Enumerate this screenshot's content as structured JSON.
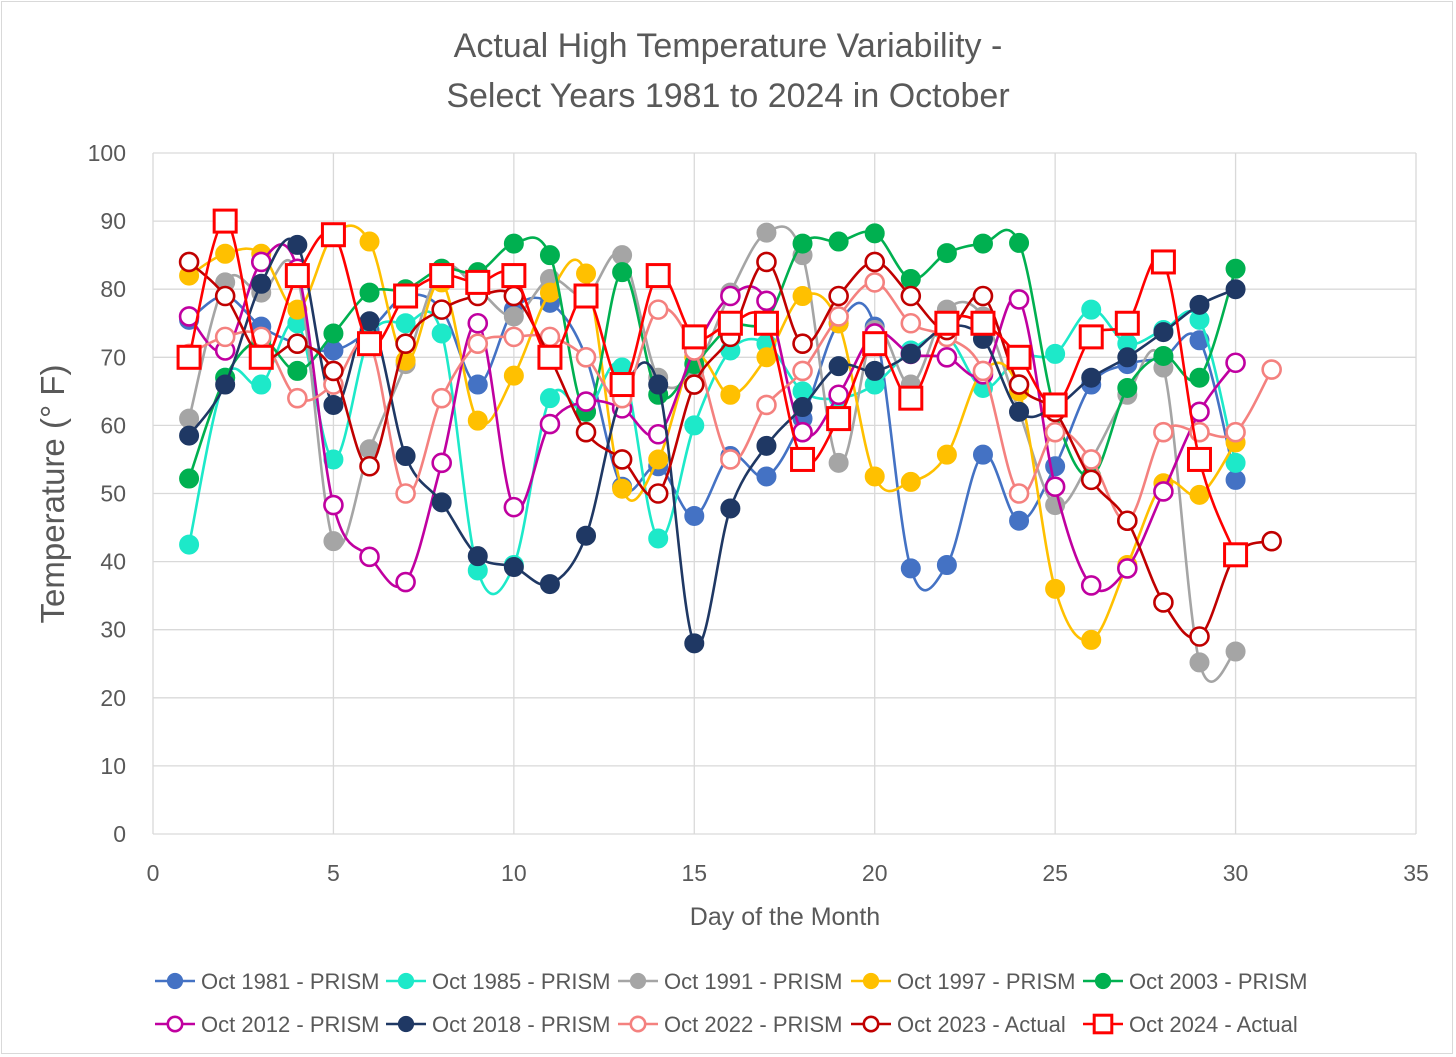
{
  "chart_data": {
    "type": "scatter",
    "title": [
      "Actual High Temperature Variability -",
      "Select Years 1981 to 2024 in October"
    ],
    "xlabel": "Day of the Month",
    "ylabel": "Temperature (° F)",
    "xlim": [
      0,
      35
    ],
    "ylim": [
      0,
      100
    ],
    "xticks": [
      0,
      5,
      10,
      15,
      20,
      25,
      30,
      35
    ],
    "yticks": [
      0,
      10,
      20,
      30,
      40,
      50,
      60,
      70,
      80,
      90,
      100
    ],
    "grid": true,
    "smoothed_lines": true,
    "legend_position": "bottom",
    "series": [
      {
        "name": "Oct 1981 - PRISM",
        "color": "#4472c4",
        "marker": "filled-circle",
        "x": [
          1,
          2,
          3,
          4,
          5,
          6,
          7,
          8,
          9,
          10,
          11,
          12,
          13,
          14,
          15,
          16,
          17,
          18,
          19,
          20,
          21,
          22,
          23,
          24,
          25,
          26,
          27,
          28,
          29,
          30
        ],
        "y": [
          75.5,
          79,
          74.5,
          72,
          71,
          74,
          79,
          77,
          66,
          77,
          78,
          70,
          51,
          54,
          46.7,
          55.5,
          52.5,
          61,
          75,
          74.5,
          39,
          39.5,
          55.7,
          46,
          54,
          66,
          69,
          70,
          72.5,
          52
        ]
      },
      {
        "name": "Oct 1985 - PRISM",
        "color": "#1de9c9",
        "marker": "filled-circle",
        "x": [
          1,
          2,
          3,
          4,
          5,
          6,
          7,
          8,
          9,
          10,
          11,
          12,
          13,
          14,
          15,
          16,
          17,
          18,
          19,
          20,
          21,
          22,
          23,
          24,
          25,
          26,
          27,
          28,
          29,
          30
        ],
        "y": [
          42.5,
          67,
          66,
          75,
          55,
          73,
          75,
          73.5,
          38.7,
          39.5,
          64,
          62,
          68.5,
          43.4,
          60,
          71,
          72,
          65,
          64,
          66,
          71,
          73,
          65.5,
          70,
          70.5,
          77,
          72,
          74,
          75.5,
          54.5
        ]
      },
      {
        "name": "Oct 1991 - PRISM",
        "color": "#a5a5a5",
        "marker": "filled-circle",
        "x": [
          1,
          2,
          3,
          4,
          5,
          6,
          7,
          8,
          9,
          10,
          11,
          12,
          13,
          14,
          15,
          16,
          17,
          18,
          19,
          20,
          21,
          22,
          23,
          24,
          25,
          26,
          27,
          28,
          29,
          30
        ],
        "y": [
          61,
          81,
          79.5,
          82,
          43,
          56.5,
          69,
          83,
          80,
          76,
          81.5,
          79,
          85,
          67,
          68,
          79.5,
          88.3,
          85,
          54.5,
          74,
          66,
          77,
          76,
          62,
          48.3,
          55,
          64.5,
          68.5,
          25.2,
          26.8
        ]
      },
      {
        "name": "Oct 1997 - PRISM",
        "color": "#ffc000",
        "marker": "filled-circle",
        "x": [
          1,
          2,
          3,
          4,
          5,
          6,
          7,
          8,
          9,
          10,
          11,
          12,
          13,
          14,
          15,
          16,
          17,
          18,
          19,
          20,
          21,
          22,
          23,
          24,
          25,
          26,
          27,
          28,
          29,
          30
        ],
        "y": [
          82,
          85.2,
          85.2,
          77,
          88,
          87,
          69.5,
          81,
          60.7,
          67.3,
          79.5,
          82.3,
          50.7,
          55,
          70,
          64.5,
          70,
          79,
          75,
          52.5,
          51.7,
          55.7,
          68,
          65,
          36,
          28.5,
          39.5,
          51.5,
          49.8,
          57.5
        ]
      },
      {
        "name": "Oct 2003 - PRISM",
        "color": "#00b050",
        "marker": "filled-circle",
        "x": [
          1,
          2,
          3,
          4,
          5,
          6,
          7,
          8,
          9,
          10,
          11,
          12,
          13,
          14,
          15,
          16,
          17,
          18,
          19,
          20,
          21,
          22,
          23,
          24,
          25,
          26,
          27,
          28,
          29,
          30
        ],
        "y": [
          52.2,
          67,
          72.5,
          68,
          73.5,
          79.5,
          80,
          83,
          82.5,
          86.7,
          85,
          62,
          82.5,
          64.5,
          69,
          74.5,
          75.5,
          86.7,
          87,
          88.2,
          81.5,
          85.3,
          86.7,
          86.8,
          62,
          52.5,
          65.5,
          70.2,
          67,
          83
        ]
      },
      {
        "name": "Oct 2012 - PRISM",
        "color": "#c000a0",
        "marker": "open-circle",
        "x": [
          1,
          2,
          3,
          4,
          5,
          6,
          7,
          8,
          9,
          10,
          11,
          12,
          13,
          14,
          15,
          16,
          17,
          18,
          19,
          20,
          21,
          22,
          23,
          24,
          25,
          26,
          27,
          28,
          29,
          30
        ],
        "y": [
          76,
          71,
          84,
          83,
          48.3,
          40.7,
          37,
          54.5,
          75,
          48,
          60.2,
          63.5,
          62.5,
          58.7,
          71,
          79,
          78.3,
          59,
          64.5,
          73.5,
          70.5,
          70,
          67.5,
          78.5,
          51,
          36.5,
          39,
          50.3,
          62,
          69.2
        ]
      },
      {
        "name": "Oct 2018 - PRISM",
        "color": "#1f3864",
        "marker": "filled-circle",
        "x": [
          1,
          2,
          3,
          4,
          5,
          6,
          7,
          8,
          9,
          10,
          11,
          12,
          13,
          14,
          15,
          16,
          17,
          18,
          19,
          20,
          21,
          22,
          23,
          24,
          25,
          26,
          27,
          28,
          29,
          30
        ],
        "y": [
          58.5,
          66,
          80.8,
          86.5,
          63,
          75.3,
          55.5,
          48.7,
          40.8,
          39.2,
          36.7,
          43.8,
          64.5,
          66,
          28,
          47.8,
          57,
          62.7,
          68.7,
          68,
          70.5,
          74.5,
          72.7,
          62,
          62.7,
          67,
          70,
          73.7,
          77.7,
          80
        ]
      },
      {
        "name": "Oct 2022 - PRISM",
        "color": "#f4817f",
        "marker": "open-circle",
        "x": [
          1,
          2,
          3,
          4,
          5,
          6,
          7,
          8,
          9,
          10,
          11,
          12,
          13,
          14,
          15,
          16,
          17,
          18,
          19,
          20,
          21,
          22,
          23,
          24,
          25,
          26,
          27,
          28,
          29,
          30,
          31
        ],
        "y": [
          70.5,
          73,
          73,
          64,
          66,
          72,
          50,
          64,
          72,
          73,
          73,
          70,
          64,
          77,
          71,
          55,
          63,
          68,
          76,
          81,
          75,
          73,
          68,
          50,
          59,
          55,
          46,
          59,
          59,
          59,
          68.2
        ]
      },
      {
        "name": "Oct 2023 - Actual",
        "color": "#c00000",
        "marker": "open-circle",
        "x": [
          1,
          2,
          3,
          4,
          5,
          6,
          7,
          8,
          9,
          10,
          11,
          12,
          13,
          14,
          15,
          16,
          17,
          18,
          19,
          20,
          21,
          22,
          23,
          24,
          25,
          26,
          27,
          28,
          29,
          30,
          31
        ],
        "y": [
          84,
          79,
          70,
          72,
          68,
          54,
          72,
          77,
          79,
          79,
          70,
          59,
          55,
          50,
          66,
          73,
          84,
          72,
          79,
          84,
          79,
          74,
          79,
          66,
          62,
          52,
          46,
          34,
          29,
          41,
          43
        ]
      },
      {
        "name": "Oct 2024 - Actual",
        "color": "#ff0000",
        "marker": "open-square",
        "x": [
          1,
          2,
          3,
          4,
          5,
          6,
          7,
          8,
          9,
          10,
          11,
          12,
          13,
          14,
          15,
          16,
          17,
          18,
          19,
          20,
          21,
          22,
          23,
          24,
          25,
          26,
          27,
          28,
          29,
          30
        ],
        "y": [
          70,
          90,
          70,
          82,
          88,
          72,
          79,
          82,
          81,
          82,
          70,
          79,
          66,
          82,
          73,
          75,
          75,
          55,
          61,
          72,
          64,
          75,
          75,
          70,
          63,
          73,
          75,
          84,
          55,
          41
        ]
      }
    ]
  }
}
